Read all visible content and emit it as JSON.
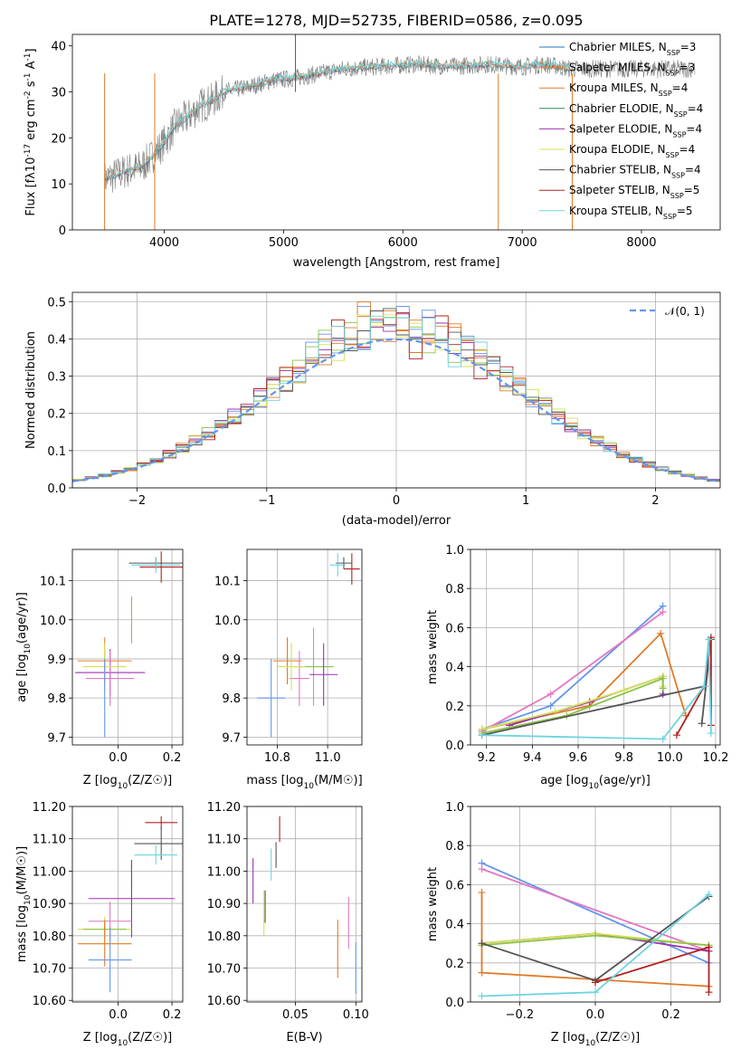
{
  "title": "PLATE=1278, MJD=52735, FIBERID=0586, z=0.095",
  "colors": {
    "Chabrier MILES": "#1f77b4",
    "Salpeter MILES": "#ff7f0e",
    "Kroupa MILES": "#e07b28",
    "Chabrier ELODIE": "#2e8b57",
    "Salpeter ELODIE": "#9b30b0",
    "Kroupa ELODIE": "#d4e157",
    "Chabrier STELIB": "#555555",
    "Salpeter STELIB": "#b22222",
    "Kroupa STELIB": "#6fd4e0",
    "cornflower": "#6495ed",
    "pink": "#e377c2",
    "green": "#8bc34a"
  },
  "chart_data": [
    {
      "id": "spectrum",
      "type": "line",
      "xlabel": "wavelength [Angstrom, rest frame]",
      "ylabel": "Flux [f_λ10^{-17} erg cm^{-2} s^{-1} A^{-1}]",
      "xlim": [
        3230,
        8660
      ],
      "ylim": [
        0,
        42.5
      ],
      "xticks": [
        4000,
        5000,
        6000,
        7000,
        8000
      ],
      "yticks": [
        0,
        10,
        20,
        30,
        40
      ],
      "legend_position": "right",
      "legend": [
        {
          "label": "Chabrier MILES, N",
          "sub": "SSP",
          "tail": "=3",
          "color": "#1f77b4"
        },
        {
          "label": "Salpeter MILES, N",
          "sub": "SSP",
          "tail": "=3",
          "color": "#ff7f0e"
        },
        {
          "label": "Kroupa MILES, N",
          "sub": "SSP",
          "tail": "=4",
          "color": "#e07b28"
        },
        {
          "label": "Chabrier ELODIE, N",
          "sub": "SSP",
          "tail": "=4",
          "color": "#2e8b57"
        },
        {
          "label": "Salpeter ELODIE, N",
          "sub": "SSP",
          "tail": "=4",
          "color": "#9b30b0"
        },
        {
          "label": "Kroupa ELODIE, N",
          "sub": "SSP",
          "tail": "=4",
          "color": "#d4e157"
        },
        {
          "label": "Chabrier STELIB, N",
          "sub": "SSP",
          "tail": "=4",
          "color": "#555555"
        },
        {
          "label": "Salpeter STELIB, N",
          "sub": "SSP",
          "tail": "=5",
          "color": "#b22222"
        },
        {
          "label": "Kroupa STELIB, N",
          "sub": "SSP",
          "tail": "=5",
          "color": "#6fd4e0"
        }
      ],
      "continuum": [
        [
          3500,
          11
        ],
        [
          3600,
          12
        ],
        [
          3700,
          13
        ],
        [
          3800,
          13.5
        ],
        [
          3900,
          16
        ],
        [
          4000,
          19
        ],
        [
          4100,
          23
        ],
        [
          4200,
          24.5
        ],
        [
          4300,
          27
        ],
        [
          4400,
          28
        ],
        [
          4500,
          30
        ],
        [
          4700,
          31
        ],
        [
          4900,
          32.5
        ],
        [
          5100,
          33
        ],
        [
          5300,
          34
        ],
        [
          5500,
          35
        ],
        [
          5800,
          35.5
        ],
        [
          6100,
          36
        ],
        [
          6400,
          35.5
        ],
        [
          6700,
          36
        ],
        [
          7000,
          35.5
        ],
        [
          7200,
          36
        ],
        [
          7400,
          35
        ]
      ],
      "spikes": [
        {
          "x": 5100,
          "y": 42.5
        },
        {
          "x": 6800,
          "y": 0
        },
        {
          "x": 7420,
          "y": 0
        },
        {
          "x": 3920,
          "y": 0
        },
        {
          "x": 3500,
          "y": 0
        }
      ]
    },
    {
      "id": "residuals",
      "type": "histogram",
      "xlabel": "(data-model)/error",
      "ylabel": "Normed distribution",
      "xlim": [
        -2.5,
        2.5
      ],
      "ylim": [
        0,
        0.525
      ],
      "xticks": [
        -2,
        -1,
        0,
        1,
        2
      ],
      "yticks": [
        0.0,
        0.1,
        0.2,
        0.3,
        0.4,
        0.5
      ],
      "legend_position": "top-right",
      "legend": [
        {
          "label": "𝒩(0, 1)",
          "color": "#6495ed",
          "style": "dashed"
        }
      ],
      "bin_width": 0.1,
      "bin_start": -2.5
    },
    {
      "id": "age_vs_Z",
      "type": "errorbar",
      "xlabel": "Z [log10(Z/Z☉)]",
      "ylabel": "age [log10(age/yr)]",
      "xlim": [
        -0.17,
        0.24
      ],
      "ylim": [
        9.68,
        10.18
      ],
      "xticks": [
        0.0,
        0.2
      ],
      "yticks": [
        9.7,
        9.8,
        9.9,
        10.0,
        10.1
      ],
      "points": [
        {
          "x": 0.14,
          "y": 10.145,
          "xerr": 0.1,
          "yerr": 0.015,
          "color": "#555555"
        },
        {
          "x": 0.16,
          "y": 10.135,
          "xerr": 0.08,
          "yerr": 0.04,
          "color": "#b22222"
        },
        {
          "x": 0.14,
          "y": 10.14,
          "xerr": 0.09,
          "yerr": 0.02,
          "color": "#6fd4e0"
        },
        {
          "x": 0.05,
          "y": 10.0,
          "xerr": 0.0,
          "yerr": 0.06,
          "color": "#8bc34a"
        },
        {
          "x": -0.05,
          "y": 9.895,
          "xerr": 0.1,
          "yerr": 0.06,
          "color": "#e07b28"
        },
        {
          "x": -0.03,
          "y": 9.865,
          "xerr": 0.13,
          "yerr": 0.06,
          "color": "#9b30b0"
        },
        {
          "x": -0.03,
          "y": 9.85,
          "xerr": 0.09,
          "yerr": 0.07,
          "color": "#e377c2"
        },
        {
          "x": -0.05,
          "y": 9.88,
          "xerr": 0.08,
          "yerr": 0.06,
          "color": "#d4e157"
        },
        {
          "x": -0.05,
          "y": 9.8,
          "xerr": 0.0,
          "yerr": 0.1,
          "color": "#6495ed"
        }
      ]
    },
    {
      "id": "age_vs_mass",
      "type": "errorbar",
      "xlabel": "mass [log10(M/M☉)]",
      "ylabel": "",
      "xlim": [
        10.6,
        11.17
      ],
      "ylim": [
        9.68,
        10.18
      ],
      "xticks": [
        10.75,
        11.0
      ],
      "yticks": [
        9.7,
        9.8,
        9.9,
        10.0,
        10.1
      ],
      "points": [
        {
          "x": 11.08,
          "y": 10.145,
          "xerr": 0.04,
          "yerr": 0.015,
          "color": "#555555"
        },
        {
          "x": 11.12,
          "y": 10.13,
          "xerr": 0.04,
          "yerr": 0.04,
          "color": "#b22222"
        },
        {
          "x": 11.05,
          "y": 10.14,
          "xerr": 0.04,
          "yerr": 0.03,
          "color": "#6fd4e0"
        },
        {
          "x": 10.93,
          "y": 9.88,
          "xerr": 0.1,
          "yerr": 0.1,
          "color": "#8bc34a"
        },
        {
          "x": 10.8,
          "y": 9.895,
          "xerr": 0.07,
          "yerr": 0.06,
          "color": "#e07b28"
        },
        {
          "x": 10.98,
          "y": 9.86,
          "xerr": 0.07,
          "yerr": 0.08,
          "color": "#9b30b0"
        },
        {
          "x": 10.86,
          "y": 9.85,
          "xerr": 0.05,
          "yerr": 0.07,
          "color": "#e377c2"
        },
        {
          "x": 10.82,
          "y": 9.88,
          "xerr": 0.07,
          "yerr": 0.06,
          "color": "#d4e157"
        },
        {
          "x": 10.72,
          "y": 9.8,
          "xerr": 0.07,
          "yerr": 0.1,
          "color": "#6495ed"
        }
      ]
    },
    {
      "id": "massweight_vs_age",
      "type": "line",
      "xlabel": "age [log10(age/yr)]",
      "ylabel": "mass weight",
      "xlim": [
        9.13,
        10.22
      ],
      "ylim": [
        0,
        1
      ],
      "xticks": [
        9.2,
        9.4,
        9.6,
        9.8,
        10.0,
        10.2
      ],
      "yticks": [
        0.0,
        0.2,
        0.4,
        0.6,
        0.8,
        1.0
      ],
      "series": [
        {
          "color": "#6495ed",
          "points": [
            [
              9.18,
              0.08
            ],
            [
              9.48,
              0.2
            ],
            [
              9.97,
              0.71
            ]
          ]
        },
        {
          "color": "#e377c2",
          "points": [
            [
              9.18,
              0.07
            ],
            [
              9.48,
              0.26
            ],
            [
              9.97,
              0.68
            ]
          ]
        },
        {
          "color": "#e07b28",
          "points": [
            [
              9.18,
              0.08
            ],
            [
              9.65,
              0.2
            ],
            [
              9.96,
              0.57
            ],
            [
              10.07,
              0.15
            ]
          ]
        },
        {
          "color": "#9b30b0",
          "points": [
            [
              9.3,
              0.1
            ],
            [
              9.65,
              0.22
            ],
            [
              9.97,
              0.35
            ],
            [
              9.97,
              0.26
            ]
          ]
        },
        {
          "color": "#d4e157",
          "points": [
            [
              9.18,
              0.08
            ],
            [
              9.5,
              0.17
            ],
            [
              9.8,
              0.28
            ],
            [
              9.97,
              0.35
            ],
            [
              9.97,
              0.3
            ]
          ]
        },
        {
          "color": "#8bc34a",
          "points": [
            [
              9.18,
              0.06
            ],
            [
              9.55,
              0.15
            ],
            [
              9.97,
              0.34
            ],
            [
              9.97,
              0.29
            ]
          ]
        },
        {
          "color": "#555555",
          "points": [
            [
              9.18,
              0.05
            ],
            [
              10.15,
              0.3
            ],
            [
              10.18,
              0.54
            ],
            [
              10.14,
              0.11
            ]
          ]
        },
        {
          "color": "#b22222",
          "points": [
            [
              10.03,
              0.05
            ],
            [
              10.15,
              0.3
            ],
            [
              10.18,
              0.55
            ],
            [
              10.18,
              0.1
            ]
          ]
        },
        {
          "color": "#6fd4e0",
          "points": [
            [
              9.18,
              0.05
            ],
            [
              9.97,
              0.03
            ],
            [
              10.15,
              0.3
            ],
            [
              10.17,
              0.54
            ],
            [
              10.18,
              0.06
            ]
          ]
        }
      ]
    },
    {
      "id": "mass_vs_Z",
      "type": "errorbar",
      "xlabel": "Z [log10(Z/Z☉)]",
      "ylabel": "mass [log10(M/M☉)]",
      "xlim": [
        -0.17,
        0.24
      ],
      "ylim": [
        10.595,
        11.2
      ],
      "xticks": [
        0.0,
        0.2
      ],
      "yticks": [
        10.6,
        10.7,
        10.8,
        10.9,
        11.0,
        11.1,
        11.2
      ],
      "points": [
        {
          "x": 0.16,
          "y": 11.15,
          "xerr": 0.06,
          "yerr": 0.02,
          "color": "#b22222"
        },
        {
          "x": 0.16,
          "y": 11.085,
          "xerr": 0.1,
          "yerr": 0.05,
          "color": "#555555"
        },
        {
          "x": 0.14,
          "y": 11.05,
          "xerr": 0.08,
          "yerr": 0.03,
          "color": "#6fd4e0"
        },
        {
          "x": 0.05,
          "y": 10.98,
          "xerr": 0.0,
          "yerr": 0.04,
          "color": "#555555"
        },
        {
          "x": 0.05,
          "y": 10.915,
          "xerr": 0.16,
          "yerr": 0.12,
          "color": "#9b30b0"
        },
        {
          "x": -0.03,
          "y": 10.845,
          "xerr": 0.08,
          "yerr": 0.06,
          "color": "#e377c2"
        },
        {
          "x": -0.05,
          "y": 10.82,
          "xerr": 0.1,
          "yerr": 0.04,
          "color": "#d4e157"
        },
        {
          "x": -0.05,
          "y": 10.82,
          "xerr": 0.08,
          "yerr": 0.03,
          "color": "#8bc34a"
        },
        {
          "x": -0.05,
          "y": 10.775,
          "xerr": 0.1,
          "yerr": 0.07,
          "color": "#e07b28"
        },
        {
          "x": -0.03,
          "y": 10.725,
          "xerr": 0.08,
          "yerr": 0.1,
          "color": "#6495ed"
        }
      ]
    },
    {
      "id": "mass_vs_EBV",
      "type": "errorbar",
      "xlabel": "E(B-V)",
      "ylabel": "",
      "xlim": [
        0.01,
        0.105
      ],
      "ylim": [
        10.595,
        11.2
      ],
      "xticks": [
        0.05,
        0.1
      ],
      "yticks": [
        10.6,
        10.7,
        10.8,
        10.9,
        11.0,
        11.1,
        11.2
      ],
      "points": [
        {
          "x": 0.037,
          "y": 11.13,
          "xerr": 0.0,
          "yerr": 0.04,
          "color": "#b22222"
        },
        {
          "x": 0.034,
          "y": 11.05,
          "xerr": 0.0,
          "yerr": 0.04,
          "color": "#555555"
        },
        {
          "x": 0.03,
          "y": 11.02,
          "xerr": 0.0,
          "yerr": 0.05,
          "color": "#6fd4e0"
        },
        {
          "x": 0.015,
          "y": 10.97,
          "xerr": 0.0,
          "yerr": 0.07,
          "color": "#9b30b0"
        },
        {
          "x": 0.024,
          "y": 10.87,
          "xerr": 0.0,
          "yerr": 0.07,
          "color": "#d4e157"
        },
        {
          "x": 0.025,
          "y": 10.89,
          "xerr": 0.0,
          "yerr": 0.05,
          "color": "#555555"
        },
        {
          "x": 0.094,
          "y": 10.84,
          "xerr": 0.0,
          "yerr": 0.08,
          "color": "#e377c2"
        },
        {
          "x": 0.085,
          "y": 10.76,
          "xerr": 0.0,
          "yerr": 0.09,
          "color": "#e07b28"
        },
        {
          "x": 0.1,
          "y": 10.7,
          "xerr": 0.0,
          "yerr": 0.08,
          "color": "#6495ed"
        }
      ]
    },
    {
      "id": "massweight_vs_Z",
      "type": "line",
      "xlabel": "Z [log10(Z/Z☉)]",
      "ylabel": "mass weight",
      "xlim": [
        -0.33,
        0.33
      ],
      "ylim": [
        0,
        1
      ],
      "xticks": [
        -0.2,
        0.0,
        0.2
      ],
      "yticks": [
        0.0,
        0.2,
        0.4,
        0.6,
        0.8,
        1.0
      ],
      "series": [
        {
          "color": "#6495ed",
          "points": [
            [
              -0.3,
              0.71
            ],
            [
              0.3,
              0.2
            ]
          ]
        },
        {
          "color": "#e377c2",
          "points": [
            [
              -0.3,
              0.68
            ],
            [
              0.3,
              0.26
            ]
          ]
        },
        {
          "color": "#e07b28",
          "points": [
            [
              -0.3,
              0.56
            ],
            [
              -0.3,
              0.15
            ],
            [
              0.3,
              0.08
            ]
          ]
        },
        {
          "color": "#9b30b0",
          "points": [
            [
              -0.3,
              0.3
            ],
            [
              0.0,
              0.35
            ],
            [
              0.3,
              0.26
            ]
          ]
        },
        {
          "color": "#d4e157",
          "points": [
            [
              -0.3,
              0.3
            ],
            [
              0.0,
              0.35
            ],
            [
              0.3,
              0.29
            ]
          ]
        },
        {
          "color": "#8bc34a",
          "points": [
            [
              -0.3,
              0.29
            ],
            [
              0.0,
              0.34
            ],
            [
              0.3,
              0.29
            ]
          ]
        },
        {
          "color": "#555555",
          "points": [
            [
              -0.3,
              0.3
            ],
            [
              0.0,
              0.11
            ],
            [
              0.3,
              0.54
            ]
          ]
        },
        {
          "color": "#b22222",
          "points": [
            [
              0.0,
              0.1
            ],
            [
              0.3,
              0.28
            ],
            [
              0.3,
              0.05
            ]
          ]
        },
        {
          "color": "#6fd4e0",
          "points": [
            [
              -0.3,
              0.03
            ],
            [
              0.0,
              0.05
            ],
            [
              0.3,
              0.55
            ]
          ]
        }
      ]
    }
  ]
}
